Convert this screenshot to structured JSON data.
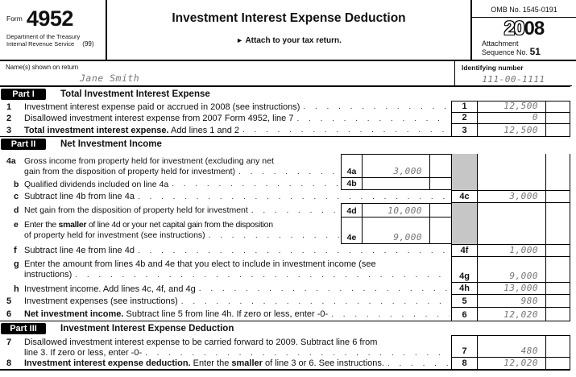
{
  "colors": {
    "shaded_cell": "#c6c6c6",
    "entry_ink": "#757575"
  },
  "header": {
    "form_label": "Form",
    "form_number": "4952",
    "agency_line1": "Department of the Treasury",
    "agency_line2": "Internal Revenue Service",
    "agency_suffix": "(99)",
    "title": "Investment Interest Expense Deduction",
    "attach_arrow": "►",
    "attach_note": "Attach to your tax return.",
    "omb": "OMB No. 1545-0191",
    "year_outline": "20",
    "year_bold": "08",
    "attachment_label": "Attachment",
    "sequence_label": "Sequence No.",
    "sequence_number": "51"
  },
  "taxpayer": {
    "name_label": "Name(s) shown on return",
    "name_value": "Jane Smith",
    "id_label": "Identifying number",
    "id_value": "111-00-1111"
  },
  "parts": [
    {
      "id": "Part I",
      "title": "Total Investment Interest Expense"
    },
    {
      "id": "Part II",
      "title": "Net Investment Income"
    },
    {
      "id": "Part III",
      "title": "Investment Interest Expense Deduction"
    }
  ],
  "lines": {
    "l1": {
      "no": "1",
      "label": "Investment interest expense paid or accrued in 2008 (see instructions)",
      "box": "1",
      "amount": "12,500"
    },
    "l2": {
      "no": "2",
      "label": "Disallowed investment interest expense from 2007 Form 4952, line 7",
      "box": "2",
      "amount": "0"
    },
    "l3": {
      "no": "3",
      "label_bold": "Total investment interest expense.",
      "label_rest": " Add lines 1 and 2",
      "box": "3",
      "amount": "12,500"
    },
    "l4a": {
      "no": "4a",
      "line1": "Gross income from property held for investment (excluding any net",
      "line2": "gain from the disposition of property held for investment)",
      "box": "4a",
      "amount": "3,000"
    },
    "l4b": {
      "no": "b",
      "label": "Qualified dividends included on line 4a",
      "box": "4b",
      "amount": ""
    },
    "l4c": {
      "no": "c",
      "label": "Subtract line 4b from line 4a",
      "box": "4c",
      "amount": "3,000"
    },
    "l4d": {
      "no": "d",
      "label": "Net gain from the disposition of property held for investment",
      "box": "4d",
      "amount": "10,000"
    },
    "l4e": {
      "no": "e",
      "pre": "Enter the ",
      "bold": "smaller",
      "rest": " of line 4d or your net capital gain from the disposition",
      "line2": "of property held for investment (see instructions)",
      "box": "4e",
      "amount": "9,000"
    },
    "l4f": {
      "no": "f",
      "label": "Subtract line 4e from line 4d",
      "box": "4f",
      "amount": "1,000"
    },
    "l4g": {
      "no": "g",
      "line1": "Enter the amount from lines 4b and 4e that you elect to include in investment income (see",
      "line2": "instructions)",
      "box": "4g",
      "amount": "9,000"
    },
    "l4h": {
      "no": "h",
      "label": "Investment income. Add lines 4c, 4f, and 4g",
      "box": "4h",
      "amount": "13,000"
    },
    "l5": {
      "no": "5",
      "label": "Investment expenses (see instructions)",
      "box": "5",
      "amount": "980"
    },
    "l6": {
      "no": "6",
      "label_bold": "Net investment income.",
      "label_rest": " Subtract line 5 from line 4h. If zero or less, enter -0-",
      "box": "6",
      "amount": "12,020"
    },
    "l7": {
      "no": "7",
      "line1": "Disallowed investment interest expense to be carried forward to 2009. Subtract line 6 from",
      "line2": "line 3. If zero or less, enter -0-",
      "box": "7",
      "amount": "480"
    },
    "l8": {
      "no": "8",
      "bold1": "Investment interest expense deduction.",
      "mid": " Enter the ",
      "bold2": "smaller",
      "rest": " of line 3 or 6. See instructions.",
      "box": "8",
      "amount": "12,020"
    }
  }
}
